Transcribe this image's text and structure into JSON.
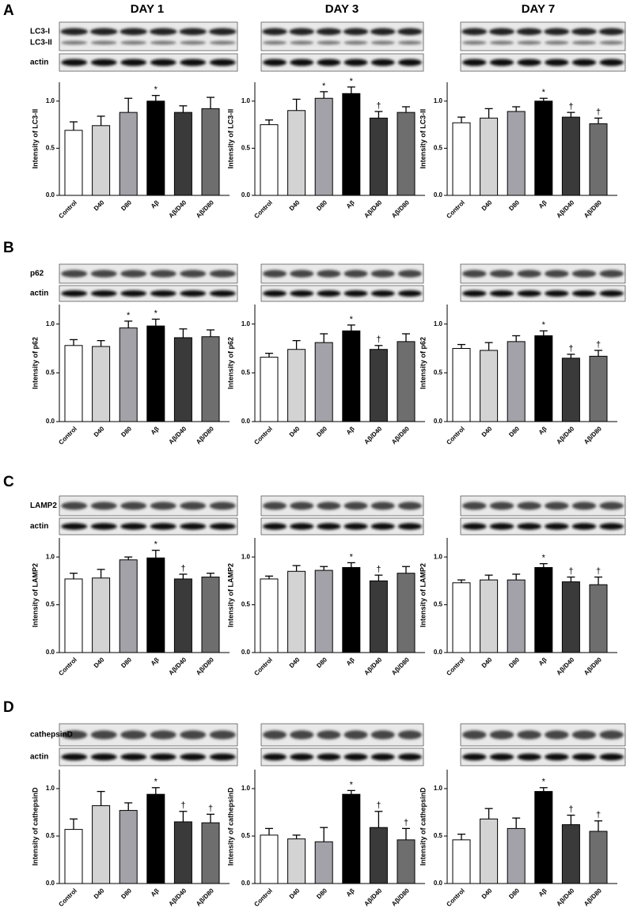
{
  "columns": [
    "DAY 1",
    "DAY 3",
    "DAY 7"
  ],
  "panels": [
    {
      "letter": "A",
      "blot_labels": [
        "LC3-I",
        "LC3-II",
        "actin"
      ]
    },
    {
      "letter": "B",
      "blot_labels": [
        "p62",
        "actin"
      ]
    },
    {
      "letter": "C",
      "blot_labels": [
        "LAMP2",
        "actin"
      ]
    },
    {
      "letter": "D",
      "blot_labels": [
        "cathepsinD",
        "actin"
      ]
    }
  ],
  "chart_data": [
    {
      "type": "bar",
      "ylabel": "Intensity of LC3-II",
      "categories": [
        "Control",
        "D40",
        "D80",
        "Aβ",
        "Aβ/D40",
        "Aβ/D80"
      ],
      "values": [
        0.69,
        0.74,
        0.88,
        1.0,
        0.88,
        0.92
      ],
      "errors": [
        0.09,
        0.1,
        0.15,
        0.06,
        0.07,
        0.12
      ],
      "annotations": [
        null,
        null,
        null,
        "*",
        null,
        null
      ],
      "colors": [
        "#ffffff",
        "#d3d3d3",
        "#a2a2a8",
        "#000000",
        "#3a3a3a",
        "#6e6e6e"
      ],
      "ylim": [
        0,
        1.2
      ],
      "yticks": [
        {
          "value": 0,
          "label": "0.0"
        },
        {
          "value": 0.5,
          "label": "0.5"
        },
        {
          "value": 1,
          "label": "1.0"
        }
      ]
    },
    {
      "type": "bar",
      "ylabel": "Intensity of LC3-II",
      "categories": [
        "Control",
        "D40",
        "D80",
        "Aβ",
        "Aβ/D40",
        "Aβ/D80"
      ],
      "values": [
        0.75,
        0.9,
        1.03,
        1.08,
        0.82,
        0.88
      ],
      "errors": [
        0.05,
        0.12,
        0.07,
        0.07,
        0.07,
        0.06
      ],
      "annotations": [
        null,
        null,
        "*",
        "*",
        "†",
        null
      ],
      "colors": [
        "#ffffff",
        "#d3d3d3",
        "#a2a2a8",
        "#000000",
        "#3a3a3a",
        "#6e6e6e"
      ],
      "ylim": [
        0,
        1.2
      ],
      "yticks": [
        {
          "value": 0,
          "label": "0.0"
        },
        {
          "value": 0.5,
          "label": "0.5"
        },
        {
          "value": 1,
          "label": "1.0"
        }
      ]
    },
    {
      "type": "bar",
      "ylabel": "Intensity of LC3-II",
      "categories": [
        "Control",
        "D40",
        "D80",
        "Aβ",
        "Aβ/D40",
        "Aβ/D80"
      ],
      "values": [
        0.77,
        0.82,
        0.89,
        1.0,
        0.83,
        0.76
      ],
      "errors": [
        0.06,
        0.1,
        0.05,
        0.03,
        0.05,
        0.06
      ],
      "annotations": [
        null,
        null,
        null,
        "*",
        "†",
        "†"
      ],
      "colors": [
        "#ffffff",
        "#d3d3d3",
        "#a2a2a8",
        "#000000",
        "#3a3a3a",
        "#6e6e6e"
      ],
      "ylim": [
        0,
        1.2
      ],
      "yticks": [
        {
          "value": 0,
          "label": "0.0"
        },
        {
          "value": 0.5,
          "label": "0.5"
        },
        {
          "value": 1,
          "label": "1.0"
        }
      ]
    },
    {
      "type": "bar",
      "ylabel": "Intensity of p62",
      "categories": [
        "Control",
        "D40",
        "D80",
        "Aβ",
        "Aβ/D40",
        "Aβ/D80"
      ],
      "values": [
        0.78,
        0.77,
        0.96,
        0.98,
        0.86,
        0.87
      ],
      "errors": [
        0.06,
        0.06,
        0.07,
        0.07,
        0.09,
        0.07
      ],
      "annotations": [
        null,
        null,
        "*",
        "*",
        null,
        null
      ],
      "colors": [
        "#ffffff",
        "#d3d3d3",
        "#a2a2a8",
        "#000000",
        "#3a3a3a",
        "#6e6e6e"
      ],
      "ylim": [
        0,
        1.2
      ],
      "yticks": [
        {
          "value": 0,
          "label": "0.0"
        },
        {
          "value": 0.5,
          "label": "0.5"
        },
        {
          "value": 1,
          "label": "1.0"
        }
      ]
    },
    {
      "type": "bar",
      "ylabel": "Intensity of p62",
      "categories": [
        "Control",
        "D40",
        "D80",
        "Aβ",
        "Aβ/D40",
        "Aβ/D80"
      ],
      "values": [
        0.66,
        0.74,
        0.81,
        0.93,
        0.74,
        0.82
      ],
      "errors": [
        0.04,
        0.09,
        0.09,
        0.06,
        0.04,
        0.08
      ],
      "annotations": [
        null,
        null,
        null,
        "*",
        "†",
        null
      ],
      "colors": [
        "#ffffff",
        "#d3d3d3",
        "#a2a2a8",
        "#000000",
        "#3a3a3a",
        "#6e6e6e"
      ],
      "ylim": [
        0,
        1.2
      ],
      "yticks": [
        {
          "value": 0,
          "label": "0.0"
        },
        {
          "value": 0.5,
          "label": "0.5"
        },
        {
          "value": 1,
          "label": "1.0"
        }
      ]
    },
    {
      "type": "bar",
      "ylabel": "Intensity of p62",
      "categories": [
        "Control",
        "D40",
        "D80",
        "Aβ",
        "Aβ/D40",
        "Aβ/D80"
      ],
      "values": [
        0.75,
        0.73,
        0.82,
        0.88,
        0.65,
        0.67
      ],
      "errors": [
        0.04,
        0.08,
        0.06,
        0.05,
        0.04,
        0.06
      ],
      "annotations": [
        null,
        null,
        null,
        "*",
        "†",
        "†"
      ],
      "colors": [
        "#ffffff",
        "#d3d3d3",
        "#a2a2a8",
        "#000000",
        "#3a3a3a",
        "#6e6e6e"
      ],
      "ylim": [
        0,
        1.2
      ],
      "yticks": [
        {
          "value": 0,
          "label": "0.0"
        },
        {
          "value": 0.5,
          "label": "0.5"
        },
        {
          "value": 1,
          "label": "1.0"
        }
      ]
    },
    {
      "type": "bar",
      "ylabel": "Intensity of LAMP2",
      "categories": [
        "Control",
        "D40",
        "D80",
        "Aβ",
        "Aβ/D40",
        "Aβ/D80"
      ],
      "values": [
        0.77,
        0.78,
        0.97,
        0.99,
        0.77,
        0.79
      ],
      "errors": [
        0.06,
        0.09,
        0.03,
        0.08,
        0.05,
        0.04
      ],
      "annotations": [
        null,
        null,
        null,
        "*",
        "†",
        null
      ],
      "colors": [
        "#ffffff",
        "#d3d3d3",
        "#a2a2a8",
        "#000000",
        "#3a3a3a",
        "#6e6e6e"
      ],
      "ylim": [
        0,
        1.2
      ],
      "yticks": [
        {
          "value": 0,
          "label": "0.0"
        },
        {
          "value": 0.5,
          "label": "0.5"
        },
        {
          "value": 1,
          "label": "1.0"
        }
      ]
    },
    {
      "type": "bar",
      "ylabel": "Intensity of LAMP2",
      "categories": [
        "Control",
        "D40",
        "D80",
        "Aβ",
        "Aβ/D40",
        "Aβ/D80"
      ],
      "values": [
        0.77,
        0.85,
        0.86,
        0.89,
        0.75,
        0.83
      ],
      "errors": [
        0.03,
        0.06,
        0.04,
        0.05,
        0.06,
        0.07
      ],
      "annotations": [
        null,
        null,
        null,
        "*",
        "†",
        null
      ],
      "colors": [
        "#ffffff",
        "#d3d3d3",
        "#a2a2a8",
        "#000000",
        "#3a3a3a",
        "#6e6e6e"
      ],
      "ylim": [
        0,
        1.2
      ],
      "yticks": [
        {
          "value": 0,
          "label": "0.0"
        },
        {
          "value": 0.5,
          "label": "0.5"
        },
        {
          "value": 1,
          "label": "1.0"
        }
      ]
    },
    {
      "type": "bar",
      "ylabel": "Intensity of LAMP2",
      "categories": [
        "Control",
        "D40",
        "D80",
        "Aβ",
        "Aβ/D40",
        "Aβ/D80"
      ],
      "values": [
        0.73,
        0.76,
        0.76,
        0.89,
        0.74,
        0.71
      ],
      "errors": [
        0.03,
        0.05,
        0.06,
        0.04,
        0.05,
        0.08
      ],
      "annotations": [
        null,
        null,
        null,
        "*",
        "†",
        "†"
      ],
      "colors": [
        "#ffffff",
        "#d3d3d3",
        "#a2a2a8",
        "#000000",
        "#3a3a3a",
        "#6e6e6e"
      ],
      "ylim": [
        0,
        1.2
      ],
      "yticks": [
        {
          "value": 0,
          "label": "0.0"
        },
        {
          "value": 0.5,
          "label": "0.5"
        },
        {
          "value": 1,
          "label": "1.0"
        }
      ]
    },
    {
      "type": "bar",
      "ylabel": "Intensity of cathepsinD",
      "categories": [
        "Control",
        "D40",
        "D80",
        "Aβ",
        "Aβ/D40",
        "Aβ/D80"
      ],
      "values": [
        0.57,
        0.82,
        0.77,
        0.94,
        0.65,
        0.64
      ],
      "errors": [
        0.11,
        0.15,
        0.08,
        0.07,
        0.11,
        0.09
      ],
      "annotations": [
        null,
        null,
        null,
        "*",
        "†",
        "†"
      ],
      "colors": [
        "#ffffff",
        "#d3d3d3",
        "#a2a2a8",
        "#000000",
        "#3a3a3a",
        "#6e6e6e"
      ],
      "ylim": [
        0,
        1.2
      ],
      "yticks": [
        {
          "value": 0,
          "label": "0.0"
        },
        {
          "value": 0.5,
          "label": "0.5"
        },
        {
          "value": 1,
          "label": "1.0"
        }
      ]
    },
    {
      "type": "bar",
      "ylabel": "Intensity of cathepsinD",
      "categories": [
        "Control",
        "D40",
        "D80",
        "Aβ",
        "Aβ/D40",
        "Aβ/D80"
      ],
      "values": [
        0.51,
        0.47,
        0.44,
        0.94,
        0.59,
        0.46
      ],
      "errors": [
        0.07,
        0.04,
        0.15,
        0.04,
        0.17,
        0.12
      ],
      "annotations": [
        null,
        null,
        null,
        "*",
        "†",
        "†"
      ],
      "colors": [
        "#ffffff",
        "#d3d3d3",
        "#a2a2a8",
        "#000000",
        "#3a3a3a",
        "#6e6e6e"
      ],
      "ylim": [
        0,
        1.2
      ],
      "yticks": [
        {
          "value": 0,
          "label": "0.0"
        },
        {
          "value": 0.5,
          "label": "0.5"
        },
        {
          "value": 1,
          "label": "1.0"
        }
      ]
    },
    {
      "type": "bar",
      "ylabel": "Intensity of cathepsinD",
      "categories": [
        "Control",
        "D40",
        "D80",
        "Aβ",
        "Aβ/D40",
        "Aβ/D80"
      ],
      "values": [
        0.46,
        0.68,
        0.58,
        0.97,
        0.62,
        0.55
      ],
      "errors": [
        0.06,
        0.11,
        0.11,
        0.04,
        0.1,
        0.11
      ],
      "annotations": [
        null,
        null,
        null,
        "*",
        "†",
        "†"
      ],
      "colors": [
        "#ffffff",
        "#d3d3d3",
        "#a2a2a8",
        "#000000",
        "#3a3a3a",
        "#6e6e6e"
      ],
      "ylim": [
        0,
        1.2
      ],
      "yticks": [
        {
          "value": 0,
          "label": "0.0"
        },
        {
          "value": 0.5,
          "label": "0.5"
        },
        {
          "value": 1,
          "label": "1.0"
        }
      ]
    }
  ]
}
